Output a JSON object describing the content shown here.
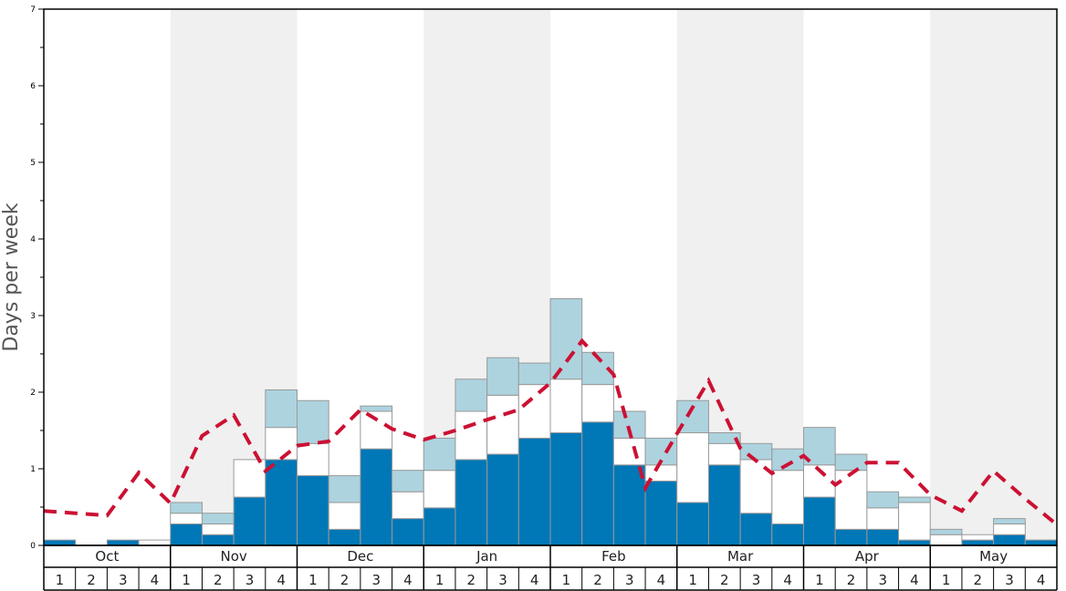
{
  "chart_data": {
    "type": "bar",
    "stacked": true,
    "ylabel": "Days per week",
    "ylim": [
      0,
      7
    ],
    "yticks": [
      0,
      1,
      2,
      3,
      4,
      5,
      6,
      7
    ],
    "months": [
      "Oct",
      "Nov",
      "Dec",
      "Jan",
      "Feb",
      "Mar",
      "Apr",
      "May"
    ],
    "weeks": [
      "1",
      "2",
      "3",
      "4"
    ],
    "shaded_months": [
      "Nov",
      "Jan",
      "Mar",
      "May"
    ],
    "colors": {
      "dark_bar": "#0077b6",
      "white_bar": "#ffffff",
      "light_bar": "#add3df",
      "bar_stroke": "#999999",
      "dashed_line": "#cc1133",
      "shade": "#f0f0f0"
    },
    "series": [
      {
        "key": "dark",
        "values": [
          0.07,
          0.0,
          0.07,
          0.0,
          0.28,
          0.14,
          0.63,
          1.12,
          0.91,
          0.21,
          1.26,
          0.35,
          0.49,
          1.12,
          1.19,
          1.4,
          1.47,
          1.61,
          1.05,
          0.84,
          0.56,
          1.05,
          0.42,
          0.28,
          0.63,
          0.21,
          0.21,
          0.07,
          0.0,
          0.07,
          0.14,
          0.07
        ]
      },
      {
        "key": "white",
        "values": [
          0.0,
          0.0,
          0.0,
          0.07,
          0.14,
          0.14,
          0.49,
          0.42,
          0.42,
          0.35,
          0.49,
          0.35,
          0.49,
          0.63,
          0.77,
          0.7,
          0.7,
          0.49,
          0.35,
          0.21,
          0.91,
          0.28,
          0.7,
          0.7,
          0.42,
          0.77,
          0.28,
          0.49,
          0.14,
          0.07,
          0.14,
          0.0
        ]
      },
      {
        "key": "light",
        "values": [
          0.0,
          0.0,
          0.0,
          0.0,
          0.14,
          0.14,
          0.0,
          0.49,
          0.56,
          0.35,
          0.07,
          0.28,
          0.42,
          0.42,
          0.49,
          0.28,
          1.05,
          0.42,
          0.35,
          0.35,
          0.42,
          0.14,
          0.21,
          0.28,
          0.49,
          0.21,
          0.21,
          0.07,
          0.07,
          0.0,
          0.07,
          0.0
        ]
      }
    ],
    "line": {
      "style": "dashed",
      "values": [
        0.45,
        0.42,
        0.39,
        0.95,
        0.55,
        1.43,
        1.7,
        0.97,
        1.3,
        1.36,
        1.77,
        1.52,
        1.38,
        1.5,
        1.64,
        1.77,
        2.12,
        2.67,
        2.23,
        0.75,
        1.46,
        2.15,
        1.27,
        0.94,
        1.17,
        0.79,
        1.08,
        1.08,
        0.66,
        0.45,
        0.97,
        0.61,
        0.27
      ],
      "x_positions_in_weeks": [
        0,
        1,
        2,
        3,
        4,
        5,
        6,
        7,
        8,
        9,
        10,
        11,
        12,
        13,
        14,
        15,
        16,
        17,
        18,
        19,
        20,
        21,
        22,
        23,
        24,
        25,
        26,
        27,
        28,
        29,
        30,
        31,
        32
      ]
    },
    "grid": false
  }
}
